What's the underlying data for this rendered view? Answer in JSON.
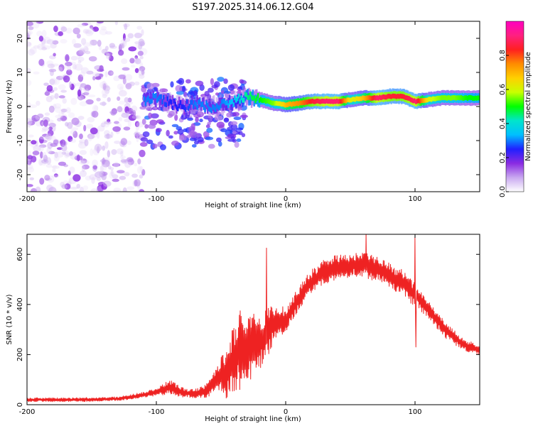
{
  "figure_title": "S197.2025.314.06.12.G04",
  "colors": {
    "snr_line": "#ee2222",
    "frame": "#000000",
    "colorbar_stops": [
      "#ffffff",
      "#c9a8f0",
      "#8a2be2",
      "#2020ff",
      "#00bfff",
      "#00e5cc",
      "#00ff00",
      "#c8ff00",
      "#ffd000",
      "#ff8c00",
      "#ff2020",
      "#ff2080",
      "#ff00c0"
    ]
  },
  "chart_data": [
    {
      "type": "heatmap",
      "title": "S197.2025.314.06.12.G04",
      "xlabel": "Height of straight line (km)",
      "ylabel": "Frequency (Hz)",
      "xlim": [
        -200,
        150
      ],
      "ylim": [
        -25,
        25
      ],
      "x_ticks": [
        -200,
        -100,
        0,
        100
      ],
      "x_tick_labels": [
        "-200",
        "-100",
        "0",
        "100"
      ],
      "y_ticks": [
        -20,
        -10,
        0,
        10,
        20
      ],
      "y_tick_labels": [
        "-20",
        "-10",
        "0",
        "10",
        "20"
      ],
      "grid": false,
      "colorbar": {
        "label": "Normalized spectral amplitude",
        "range": [
          0,
          1
        ],
        "ticks": [
          0.0,
          0.2,
          0.4,
          0.6,
          0.8
        ],
        "tick_labels": [
          "0.0",
          "0.2",
          "0.4",
          "0.6",
          "0.8"
        ]
      },
      "ridge": {
        "x": [
          -110,
          -100,
          -90,
          -80,
          -70,
          -60,
          -50,
          -40,
          -30,
          -20,
          -10,
          0,
          10,
          20,
          30,
          40,
          50,
          60,
          70,
          80,
          90,
          100,
          110,
          120,
          130,
          140,
          150
        ],
        "freq": [
          1.5,
          2.5,
          1.0,
          0.0,
          1.0,
          -0.5,
          0.5,
          1.5,
          3.0,
          2.0,
          1.0,
          0.5,
          1.0,
          1.5,
          1.5,
          1.5,
          2.0,
          2.5,
          2.5,
          3.0,
          3.0,
          1.5,
          2.0,
          2.5,
          2.5,
          2.5,
          2.5
        ],
        "amplitude": [
          0.3,
          0.3,
          0.25,
          0.25,
          0.3,
          0.3,
          0.3,
          0.35,
          0.45,
          0.5,
          0.55,
          0.7,
          0.75,
          0.85,
          0.9,
          0.9,
          0.6,
          0.7,
          0.9,
          0.85,
          0.85,
          0.9,
          0.6,
          0.55,
          0.55,
          0.5,
          0.5
        ]
      },
      "noise_region": {
        "x_range": [
          -200,
          -110
        ],
        "freq_range": [
          -25,
          25
        ],
        "amplitude_range": [
          0.0,
          0.2
        ]
      },
      "scatter_region": {
        "x_range": [
          -110,
          -30
        ],
        "freq_range": [
          -12,
          8
        ],
        "amplitude_range": [
          0.1,
          0.3
        ]
      }
    },
    {
      "type": "line",
      "title": "",
      "xlabel": "Height of straight line (km)",
      "ylabel": "SNR (10 * v/v)",
      "xlim": [
        -200,
        150
      ],
      "ylim": [
        0,
        680
      ],
      "x_ticks": [
        -200,
        -100,
        0,
        100
      ],
      "x_tick_labels": [
        "-200",
        "-100",
        "0",
        "100"
      ],
      "y_ticks": [
        0,
        200,
        400,
        600
      ],
      "y_tick_labels": [
        "0",
        "200",
        "400",
        "600"
      ],
      "grid": false,
      "series": [
        {
          "name": "SNR",
          "x": [
            -200,
            -190,
            -180,
            -170,
            -160,
            -150,
            -140,
            -130,
            -120,
            -110,
            -100,
            -95,
            -90,
            -85,
            -80,
            -75,
            -70,
            -65,
            -60,
            -55,
            -50,
            -45,
            -40,
            -35,
            -30,
            -25,
            -20,
            -15,
            -10,
            -5,
            0,
            5,
            10,
            15,
            20,
            25,
            30,
            35,
            40,
            45,
            50,
            55,
            60,
            65,
            70,
            75,
            80,
            85,
            90,
            95,
            100,
            105,
            110,
            115,
            120,
            125,
            130,
            135,
            140,
            145,
            150
          ],
          "mean": [
            20,
            20,
            20,
            20,
            20,
            21,
            22,
            24,
            30,
            40,
            50,
            60,
            70,
            60,
            50,
            45,
            45,
            50,
            60,
            90,
            120,
            130,
            180,
            220,
            230,
            240,
            250,
            280,
            320,
            330,
            340,
            380,
            420,
            460,
            490,
            510,
            530,
            540,
            550,
            555,
            555,
            560,
            560,
            550,
            540,
            530,
            520,
            500,
            490,
            460,
            440,
            410,
            380,
            350,
            320,
            290,
            270,
            250,
            235,
            225,
            220
          ],
          "amp": [
            8,
            8,
            8,
            8,
            8,
            8,
            8,
            8,
            10,
            12,
            14,
            22,
            30,
            25,
            20,
            18,
            18,
            22,
            30,
            45,
            70,
            110,
            140,
            160,
            160,
            130,
            110,
            100,
            80,
            60,
            55,
            50,
            50,
            50,
            50,
            50,
            50,
            50,
            50,
            50,
            50,
            50,
            50,
            50,
            50,
            50,
            50,
            50,
            50,
            50,
            45,
            40,
            38,
            36,
            34,
            32,
            30,
            28,
            25,
            22,
            20
          ],
          "spikes": [
            {
              "x": -15,
              "y": 625
            },
            {
              "x": 62,
              "y": 680
            },
            {
              "x": 100,
              "y": 670
            },
            {
              "x": 100.5,
              "y": 230
            }
          ]
        }
      ]
    }
  ]
}
